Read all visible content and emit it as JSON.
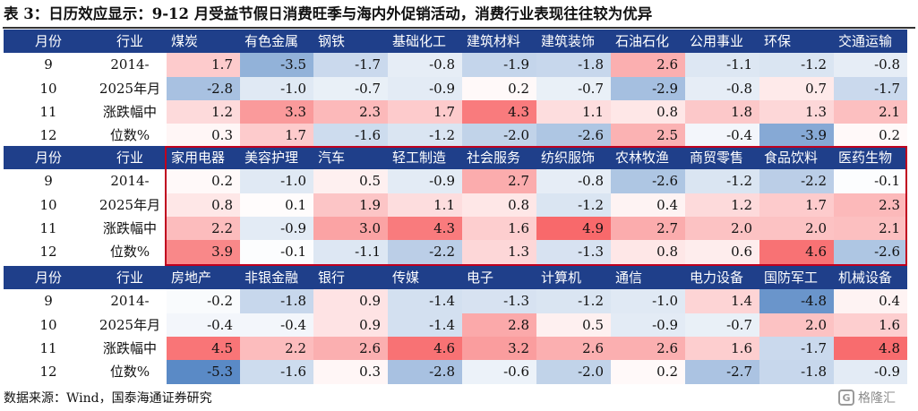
{
  "title": "表 3：日历效应显示：9-12 月受益节假日消费旺季与海内外促销活动，消费行业表现往往较为优异",
  "source_note": "数据来源：Wind，国泰海通证券研究",
  "watermark": {
    "text": "格隆汇",
    "icon": "G"
  },
  "colors": {
    "header_bg": "#1f3f8a",
    "highlight_border": "#c0001f",
    "positive": "#f8696b",
    "negative": "#5a8ac6"
  },
  "color_scale": {
    "min": -5.3,
    "max": 4.9
  },
  "blocks": [
    {
      "month_header": "月份",
      "industry_header": "行业",
      "sectors": [
        "煤炭",
        "有色金属",
        "钢铁",
        "基础化工",
        "建筑材料",
        "建筑装饰",
        "石油石化",
        "公用事业",
        "环保",
        "交通运输"
      ],
      "rows": [
        {
          "month": "9",
          "label": "2014-",
          "values": [
            "1.7",
            "-3.5",
            "-1.7",
            "-0.8",
            "-1.9",
            "-1.8",
            "2.6",
            "-1.1",
            "-1.2",
            "-0.8"
          ]
        },
        {
          "month": "10",
          "label": "2025年月",
          "values": [
            "-2.8",
            "-1.0",
            "-0.7",
            "-0.9",
            "0.2",
            "-0.7",
            "-2.9",
            "-0.8",
            "0.7",
            "-1.7"
          ]
        },
        {
          "month": "11",
          "label": "涨跌幅中",
          "values": [
            "1.2",
            "3.3",
            "2.3",
            "1.7",
            "4.3",
            "1.1",
            "0.8",
            "1.8",
            "1.3",
            "2.1"
          ]
        },
        {
          "month": "12",
          "label": "位数%",
          "values": [
            "0.3",
            "1.7",
            "-1.6",
            "-1.2",
            "-2.0",
            "-2.6",
            "2.5",
            "-0.4",
            "-3.9",
            "0.2"
          ]
        }
      ]
    },
    {
      "month_header": "月份",
      "industry_header": "行业",
      "sectors": [
        "家用电器",
        "美容护理",
        "汽车",
        "轻工制造",
        "社会服务",
        "纺织服饰",
        "农林牧渔",
        "商贸零售",
        "食品饮料",
        "医药生物"
      ],
      "rows": [
        {
          "month": "9",
          "label": "2014-",
          "values": [
            "0.2",
            "-1.0",
            "0.5",
            "-0.9",
            "2.7",
            "-0.8",
            "-2.6",
            "-1.2",
            "-2.2",
            "-0.1"
          ]
        },
        {
          "month": "10",
          "label": "2025年月",
          "values": [
            "0.8",
            "0.1",
            "1.9",
            "1.1",
            "0.8",
            "-1.2",
            "0.4",
            "1.2",
            "1.7",
            "2.3"
          ]
        },
        {
          "month": "11",
          "label": "涨跌幅中",
          "values": [
            "2.2",
            "-0.9",
            "3.0",
            "4.3",
            "1.6",
            "4.9",
            "2.7",
            "2.0",
            "2.0",
            "2.1"
          ]
        },
        {
          "month": "12",
          "label": "位数%",
          "values": [
            "3.9",
            "-0.1",
            "-1.1",
            "-2.2",
            "1.3",
            "-1.3",
            "0.8",
            "0.6",
            "4.6",
            "-2.6"
          ]
        }
      ]
    },
    {
      "month_header": "月份",
      "industry_header": "行业",
      "sectors": [
        "房地产",
        "非银金融",
        "银行",
        "传媒",
        "电子",
        "计算机",
        "通信",
        "电力设备",
        "国防军工",
        "机械设备"
      ],
      "rows": [
        {
          "month": "9",
          "label": "2014-",
          "values": [
            "-0.2",
            "-1.8",
            "0.9",
            "-1.4",
            "-1.3",
            "-1.2",
            "-1.0",
            "1.4",
            "-4.8",
            "0.4"
          ]
        },
        {
          "month": "10",
          "label": "2025年月",
          "values": [
            "-0.4",
            "-0.4",
            "0.9",
            "-1.4",
            "2.8",
            "0.5",
            "-0.9",
            "-0.7",
            "2.0",
            "1.6"
          ]
        },
        {
          "month": "11",
          "label": "涨跌幅中",
          "values": [
            "4.5",
            "2.2",
            "2.6",
            "4.6",
            "3.2",
            "2.6",
            "2.6",
            "1.6",
            "-1.7",
            "4.8"
          ]
        },
        {
          "month": "12",
          "label": "位数%",
          "values": [
            "-5.3",
            "-1.6",
            "0.3",
            "-2.8",
            "-0.6",
            "-2.0",
            "0.2",
            "-2.7",
            "-1.8",
            "-0.9"
          ]
        }
      ]
    }
  ]
}
